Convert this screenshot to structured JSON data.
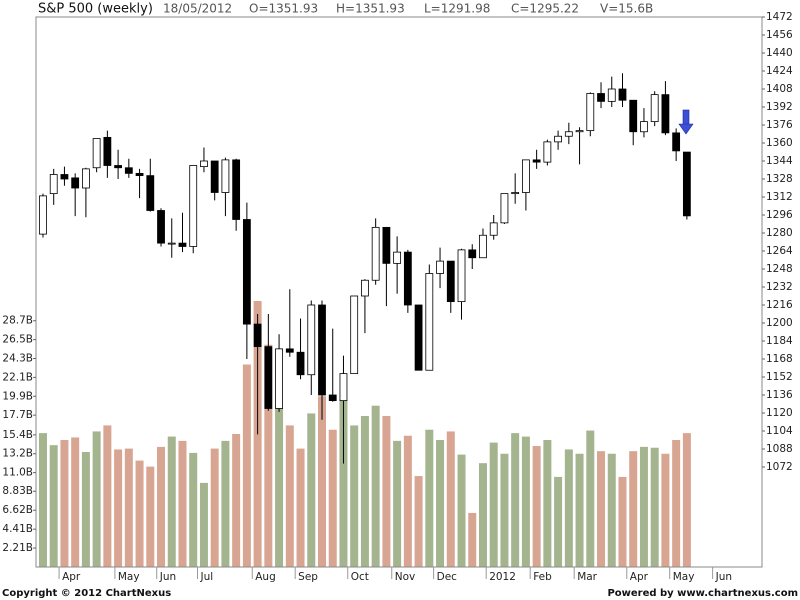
{
  "chart_data": {
    "type": "candlestick",
    "title": "S&P 500 (weekly)",
    "date": "18/05/2012",
    "quote": [
      "O=1351.93",
      "H=1351.93",
      "L=1291.98",
      "C=1295.22",
      "V=15.6B"
    ],
    "open": [
      1279,
      1315,
      1332,
      1329,
      1320,
      1338,
      1365,
      1340,
      1338,
      1333,
      1331,
      1300,
      1271,
      1271,
      1268,
      1339,
      1344,
      1316,
      1345,
      1292,
      1199,
      1179,
      1124,
      1177,
      1174,
      1154,
      1216,
      1136,
      1131,
      1155,
      1224,
      1238,
      1285,
      1253,
      1263,
      1216,
      1158,
      1244,
      1255,
      1219,
      1265,
      1258,
      1278,
      1289,
      1315,
      1316,
      1345,
      1343,
      1361,
      1366,
      1370,
      1371,
      1404,
      1397,
      1408,
      1398,
      1370,
      1379,
      1403,
      1369,
      1351.93
    ],
    "high": [
      1315,
      1337,
      1339,
      1333,
      1338,
      1364,
      1371,
      1354,
      1346,
      1337,
      1346,
      1302,
      1293,
      1298,
      1340,
      1356,
      1344,
      1347,
      1346,
      1307,
      1208,
      1208,
      1190,
      1230,
      1204,
      1220,
      1220,
      1195,
      1171,
      1224,
      1239,
      1293,
      1285,
      1277,
      1265,
      1216,
      1252,
      1267,
      1255,
      1266,
      1270,
      1284,
      1296,
      1315,
      1333,
      1345,
      1354,
      1363,
      1371,
      1378,
      1374,
      1405,
      1414,
      1419,
      1422,
      1398,
      1391,
      1406,
      1415,
      1373,
      1351.93
    ],
    "low": [
      1276,
      1305,
      1322,
      1295,
      1294,
      1334,
      1329,
      1328,
      1329,
      1311,
      1299,
      1268,
      1258,
      1263,
      1262,
      1334,
      1309,
      1295,
      1282,
      1168,
      1101,
      1122,
      1121,
      1170,
      1150,
      1136,
      1114,
      1130,
      1075,
      1155,
      1191,
      1234,
      1215,
      1226,
      1209,
      1158,
      1158,
      1231,
      1209,
      1203,
      1248,
      1258,
      1274,
      1288,
      1306,
      1300,
      1337,
      1340,
      1354,
      1359,
      1341,
      1366,
      1391,
      1392,
      1392,
      1358,
      1365,
      1375,
      1367,
      1344,
      1291.98
    ],
    "close": [
      1313,
      1332,
      1328,
      1320,
      1337,
      1364,
      1340,
      1338,
      1333,
      1331,
      1300,
      1271,
      1271,
      1268,
      1340,
      1344,
      1316,
      1345,
      1292,
      1199,
      1179,
      1124,
      1177,
      1174,
      1154,
      1216,
      1136,
      1131,
      1155,
      1224,
      1238,
      1285,
      1253,
      1263,
      1216,
      1158,
      1244,
      1255,
      1219,
      1265,
      1258,
      1278,
      1289,
      1315,
      1316,
      1345,
      1343,
      1361,
      1366,
      1370,
      1371,
      1404,
      1397,
      1408,
      1398,
      1370,
      1379,
      1403,
      1369,
      1353,
      1295.22
    ],
    "up_color": "#ffffff",
    "down_color": "#000000",
    "ylim": [
      983.1,
      1472
    ],
    "yticks": [
      1472,
      1456,
      1440,
      1424,
      1408,
      1392,
      1376,
      1360,
      1344,
      1328,
      1312,
      1296,
      1280,
      1264,
      1248,
      1232,
      1216,
      1200,
      1184,
      1168,
      1152,
      1136,
      1120,
      1104,
      1088,
      1072
    ],
    "xlim": [
      -0.65,
      67
    ],
    "xticks": [
      {
        "value": 1.5,
        "label": "Apr"
      },
      {
        "value": 6.7,
        "label": "May"
      },
      {
        "value": 10.6,
        "label": "Jun"
      },
      {
        "value": 14.4,
        "label": "Jul"
      },
      {
        "value": 19.5,
        "label": "Aug"
      },
      {
        "value": 23.5,
        "label": "Sep"
      },
      {
        "value": 28.4,
        "label": "Oct"
      },
      {
        "value": 32.5,
        "label": "Nov"
      },
      {
        "value": 36.4,
        "label": "Dec"
      },
      {
        "value": 41.3,
        "label": "2012"
      },
      {
        "value": 45.4,
        "label": "Feb"
      },
      {
        "value": 49.5,
        "label": "Mar"
      },
      {
        "value": 54.4,
        "label": "Apr"
      },
      {
        "value": 58.4,
        "label": "May"
      },
      {
        "value": 62.4,
        "label": "Jun"
      }
    ],
    "volume": {
      "values": [
        15.6,
        14.2,
        14.8,
        15.1,
        13.4,
        15.8,
        16.5,
        13.7,
        13.8,
        12.4,
        11.7,
        14.0,
        15.2,
        14.7,
        13.3,
        9.8,
        13.8,
        14.7,
        15.5,
        23.6,
        31.0,
        25.9,
        18.7,
        16.5,
        13.8,
        17.9,
        19.9,
        16.0,
        19.5,
        16.5,
        17.6,
        18.8,
        17.6,
        14.7,
        15.3,
        10.6,
        16.0,
        14.8,
        15.8,
        13.1,
        6.3,
        12.1,
        14.5,
        13.2,
        15.6,
        15.2,
        14.1,
        14.8,
        10.5,
        13.7,
        13.2,
        15.9,
        13.5,
        13.2,
        10.5,
        13.5,
        14.0,
        13.9,
        13.2,
        14.8,
        15.6
      ],
      "up_color": "#a3b48f",
      "down_color": "#d8a592",
      "ylim": [
        0,
        64.1
      ],
      "yticks": [
        {
          "value": 28.7,
          "label": "28.7B"
        },
        {
          "value": 26.5,
          "label": "26.5B"
        },
        {
          "value": 24.3,
          "label": "24.3B"
        },
        {
          "value": 22.1,
          "label": "22.1B"
        },
        {
          "value": 19.9,
          "label": "19.9B"
        },
        {
          "value": 17.7,
          "label": "17.7B"
        },
        {
          "value": 15.4,
          "label": "15.4B"
        },
        {
          "value": 13.2,
          "label": "13.2B"
        },
        {
          "value": 11.0,
          "label": "11.0B"
        },
        {
          "value": 8.83,
          "label": "8.83B"
        },
        {
          "value": 6.62,
          "label": "6.62B"
        },
        {
          "value": 4.41,
          "label": "4.41B"
        },
        {
          "value": 2.21,
          "label": "2.21B"
        }
      ]
    }
  },
  "footer": {
    "copyright": "Copyright © 2012 ChartNexus",
    "powered": "Powered by www.chartnexus.com"
  }
}
